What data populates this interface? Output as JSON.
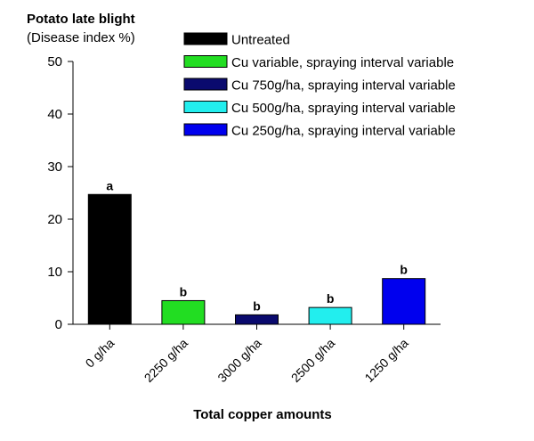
{
  "chart_data": {
    "type": "bar",
    "title": "Potato late blight",
    "subtitle": "(Disease index %)",
    "xlabel": "Total copper amounts",
    "ylabel": "",
    "ylim": [
      0,
      50
    ],
    "yticks": [
      0,
      10,
      20,
      30,
      40,
      50
    ],
    "grid": false,
    "legend_position": "top-right",
    "categories": [
      "0 g/ha",
      "2250 g/ha",
      "3000 g/ha",
      "2500 g/ha",
      "1250 g/ha"
    ],
    "values": [
      24.7,
      4.5,
      1.8,
      3.2,
      8.7
    ],
    "bar_labels": [
      "a",
      "b",
      "b",
      "b",
      "b"
    ],
    "bar_colors": [
      "#000000",
      "#22dd22",
      "#0a0a6e",
      "#22eeee",
      "#0000ee"
    ],
    "legend": [
      {
        "label": "Untreated",
        "color": "#000000"
      },
      {
        "label": "Cu variable, spraying interval variable",
        "color": "#22dd22"
      },
      {
        "label": "Cu 750g/ha, spraying interval variable",
        "color": "#0a0a6e"
      },
      {
        "label": "Cu 500g/ha, spraying interval variable",
        "color": "#22eeee"
      },
      {
        "label": "Cu 250g/ha, spraying interval variable",
        "color": "#0000ee"
      }
    ]
  }
}
